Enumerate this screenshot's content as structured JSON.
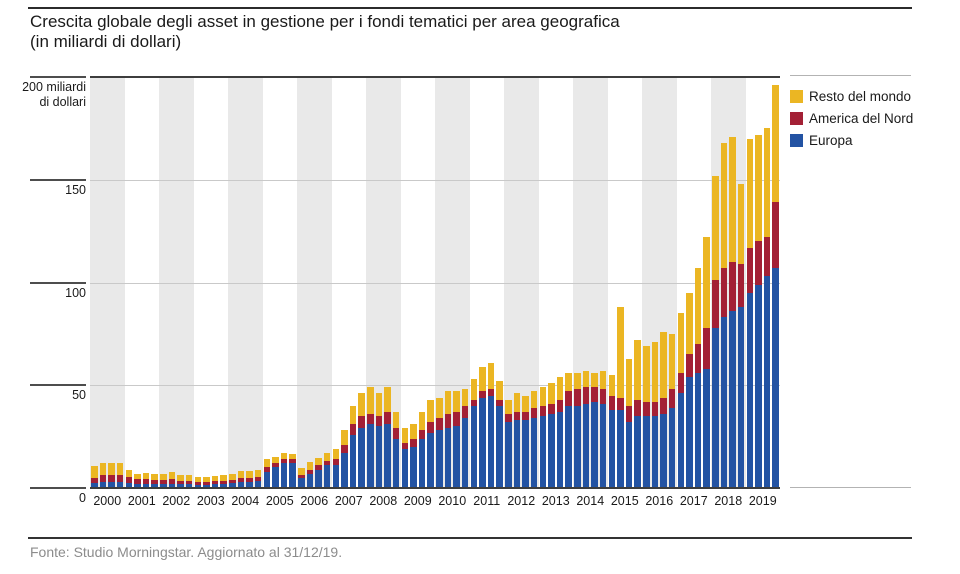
{
  "title": {
    "line1": "Crescita globale degli asset in gestione per i fondi tematici per area geografica",
    "line2": "(in miliardi di dollari)"
  },
  "y_axis": {
    "top_label_line1": "200 miliardi",
    "top_label_line2": "di dollari",
    "ticks": [
      200,
      150,
      100,
      50,
      0
    ]
  },
  "legend": {
    "items": [
      {
        "label": "Resto del mondo",
        "color": "#ebb623"
      },
      {
        "label": "America del Nord",
        "color": "#a32035"
      },
      {
        "label": "Europa",
        "color": "#2353a3"
      }
    ]
  },
  "footer": {
    "source": "Fonte: Studio Morningstar. Aggiornato al 31/12/19."
  },
  "colors": {
    "europa": "#2353a3",
    "america_del_nord": "#a32035",
    "resto_del_mondo": "#ebb623",
    "band_gray": "#e9e9e9",
    "gridline": "#c9c9c9",
    "axis": "#3d3d3d"
  },
  "chart_data": {
    "type": "bar",
    "stacked": true,
    "title": "Crescita globale degli asset in gestione per i fondi tematici per area geografica (in miliardi di dollari)",
    "ylabel": "miliardi di dollari",
    "ylim": [
      0,
      200
    ],
    "gridlines": [
      50,
      100,
      150
    ],
    "legend_position": "right",
    "grid": "horizontal",
    "background_bands": "alternating gray on even years starting 2000",
    "categories": [
      "2000",
      "2001",
      "2002",
      "2003",
      "2004",
      "2005",
      "2006",
      "2007",
      "2008",
      "2009",
      "2010",
      "2011",
      "2012",
      "2013",
      "2014",
      "2015",
      "2016",
      "2017",
      "2018",
      "2019"
    ],
    "quarters_per_year": 4,
    "x_unit": "quarter",
    "series": [
      {
        "name": "Europa",
        "color": "#2353a3",
        "values": [
          2.5,
          3,
          3,
          3,
          2.5,
          2,
          2,
          2,
          2,
          2,
          2,
          2,
          1.5,
          1.5,
          2,
          2,
          2.5,
          3,
          3,
          3.5,
          8,
          10,
          12,
          12,
          5,
          7,
          9,
          11,
          11,
          17,
          26,
          29,
          31,
          30,
          31,
          24,
          19,
          20,
          24,
          27,
          28,
          29,
          30,
          34,
          40,
          44,
          45,
          40,
          32,
          33,
          33,
          34,
          35,
          36,
          37,
          40,
          40,
          41,
          42,
          41,
          38,
          38,
          32,
          35,
          35,
          35,
          36,
          39,
          46,
          54,
          56,
          58,
          78,
          83,
          86,
          88,
          95,
          99,
          103,
          107
        ]
      },
      {
        "name": "America del Nord",
        "color": "#a32035",
        "values": [
          2.5,
          3.5,
          3.5,
          3.5,
          3,
          2.5,
          2.5,
          2,
          2,
          2.5,
          1.5,
          1.5,
          1.5,
          1.5,
          1.5,
          1.5,
          1.5,
          2,
          2,
          2,
          2,
          2,
          2,
          2,
          1.5,
          2,
          2,
          2,
          3,
          4,
          5,
          6,
          5,
          5,
          6,
          5,
          3,
          4,
          4,
          5,
          6,
          7,
          7,
          6,
          3,
          3,
          3,
          3,
          4,
          4,
          4,
          5,
          5,
          5,
          6,
          7,
          8,
          8,
          7,
          7,
          7,
          6,
          8,
          8,
          7,
          7,
          8,
          9,
          10,
          11,
          14,
          20,
          23,
          24,
          24,
          21,
          22,
          21,
          19,
          32
        ]
      },
      {
        "name": "Resto del mondo",
        "color": "#ebb623",
        "values": [
          5.5,
          5.5,
          5.5,
          5.5,
          3.5,
          2.5,
          3,
          3,
          3,
          3.5,
          3,
          3,
          2.5,
          2.5,
          2.5,
          3,
          3,
          3.5,
          3.5,
          3.5,
          4,
          3,
          3,
          2.5,
          3,
          3.5,
          3.5,
          4,
          5,
          7,
          9,
          11,
          13,
          11,
          12,
          8,
          7,
          7,
          9,
          11,
          10,
          11,
          10,
          8,
          10,
          12,
          13,
          9,
          7,
          9,
          8,
          8,
          9,
          10,
          11,
          9,
          8,
          8,
          7,
          9,
          10,
          44,
          23,
          29,
          27,
          29,
          32,
          27,
          29,
          30,
          37,
          44,
          51,
          61,
          61,
          39,
          53,
          52,
          53,
          57
        ]
      }
    ]
  }
}
